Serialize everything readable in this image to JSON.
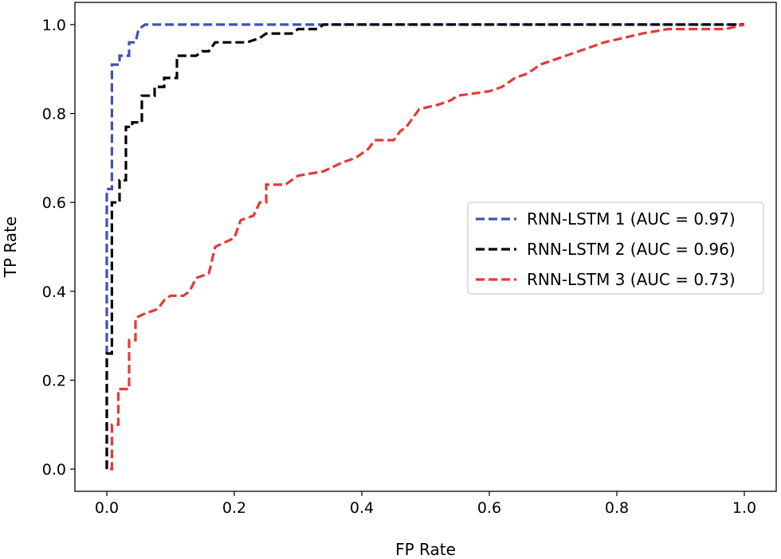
{
  "chart_data": {
    "type": "line",
    "title": "",
    "xlabel": "FP Rate",
    "ylabel": "TP Rate",
    "xlim": [
      -0.05,
      1.05
    ],
    "ylim": [
      -0.05,
      1.05
    ],
    "xticks": [
      "0.0",
      "0.2",
      "0.4",
      "0.6",
      "0.8",
      "1.0"
    ],
    "yticks": [
      "0.0",
      "0.2",
      "0.4",
      "0.6",
      "0.8",
      "1.0"
    ],
    "grid": false,
    "legend_position": "center-right",
    "series": [
      {
        "name": "RNN-LSTM 1 (AUC = 0.97)",
        "color": "#3f51b5",
        "style": "dashed",
        "points": [
          [
            0,
            0
          ],
          [
            0,
            0.63
          ],
          [
            0.008,
            0.63
          ],
          [
            0.008,
            0.91
          ],
          [
            0.02,
            0.91
          ],
          [
            0.02,
            0.93
          ],
          [
            0.035,
            0.93
          ],
          [
            0.035,
            0.96
          ],
          [
            0.045,
            0.96
          ],
          [
            0.05,
            0.99
          ],
          [
            0.06,
            1.0
          ],
          [
            1.0,
            1.0
          ]
        ]
      },
      {
        "name": "RNN-LSTM 2 (AUC = 0.96)",
        "color": "#000000",
        "style": "dashed",
        "points": [
          [
            0,
            0
          ],
          [
            0,
            0.26
          ],
          [
            0.008,
            0.26
          ],
          [
            0.008,
            0.6
          ],
          [
            0.02,
            0.6
          ],
          [
            0.02,
            0.65
          ],
          [
            0.03,
            0.65
          ],
          [
            0.03,
            0.77
          ],
          [
            0.04,
            0.77
          ],
          [
            0.04,
            0.78
          ],
          [
            0.055,
            0.78
          ],
          [
            0.055,
            0.84
          ],
          [
            0.075,
            0.84
          ],
          [
            0.075,
            0.86
          ],
          [
            0.09,
            0.86
          ],
          [
            0.09,
            0.88
          ],
          [
            0.11,
            0.88
          ],
          [
            0.11,
            0.93
          ],
          [
            0.14,
            0.93
          ],
          [
            0.15,
            0.94
          ],
          [
            0.16,
            0.94
          ],
          [
            0.17,
            0.96
          ],
          [
            0.22,
            0.96
          ],
          [
            0.24,
            0.97
          ],
          [
            0.25,
            0.98
          ],
          [
            0.29,
            0.98
          ],
          [
            0.3,
            0.99
          ],
          [
            0.33,
            0.99
          ],
          [
            0.34,
            1.0
          ],
          [
            1.0,
            1.0
          ]
        ]
      },
      {
        "name": "RNN-LSTM 3 (AUC = 0.73)",
        "color": "#e53935",
        "style": "dashed",
        "points": [
          [
            0.005,
            0
          ],
          [
            0.008,
            0
          ],
          [
            0.008,
            0.1
          ],
          [
            0.018,
            0.1
          ],
          [
            0.018,
            0.18
          ],
          [
            0.035,
            0.18
          ],
          [
            0.035,
            0.29
          ],
          [
            0.045,
            0.29
          ],
          [
            0.045,
            0.34
          ],
          [
            0.06,
            0.35
          ],
          [
            0.08,
            0.36
          ],
          [
            0.09,
            0.38
          ],
          [
            0.1,
            0.39
          ],
          [
            0.12,
            0.39
          ],
          [
            0.13,
            0.4
          ],
          [
            0.14,
            0.43
          ],
          [
            0.16,
            0.44
          ],
          [
            0.17,
            0.5
          ],
          [
            0.2,
            0.52
          ],
          [
            0.21,
            0.56
          ],
          [
            0.23,
            0.57
          ],
          [
            0.24,
            0.6
          ],
          [
            0.25,
            0.6
          ],
          [
            0.25,
            0.64
          ],
          [
            0.28,
            0.64
          ],
          [
            0.3,
            0.66
          ],
          [
            0.34,
            0.67
          ],
          [
            0.37,
            0.69
          ],
          [
            0.39,
            0.7
          ],
          [
            0.41,
            0.72
          ],
          [
            0.42,
            0.74
          ],
          [
            0.45,
            0.74
          ],
          [
            0.46,
            0.76
          ],
          [
            0.47,
            0.77
          ],
          [
            0.48,
            0.79
          ],
          [
            0.49,
            0.81
          ],
          [
            0.52,
            0.82
          ],
          [
            0.54,
            0.83
          ],
          [
            0.55,
            0.84
          ],
          [
            0.6,
            0.85
          ],
          [
            0.62,
            0.86
          ],
          [
            0.64,
            0.88
          ],
          [
            0.66,
            0.89
          ],
          [
            0.68,
            0.91
          ],
          [
            0.7,
            0.92
          ],
          [
            0.74,
            0.94
          ],
          [
            0.78,
            0.96
          ],
          [
            0.84,
            0.98
          ],
          [
            0.88,
            0.99
          ],
          [
            0.97,
            0.99
          ],
          [
            1.0,
            1.0
          ]
        ]
      }
    ]
  }
}
